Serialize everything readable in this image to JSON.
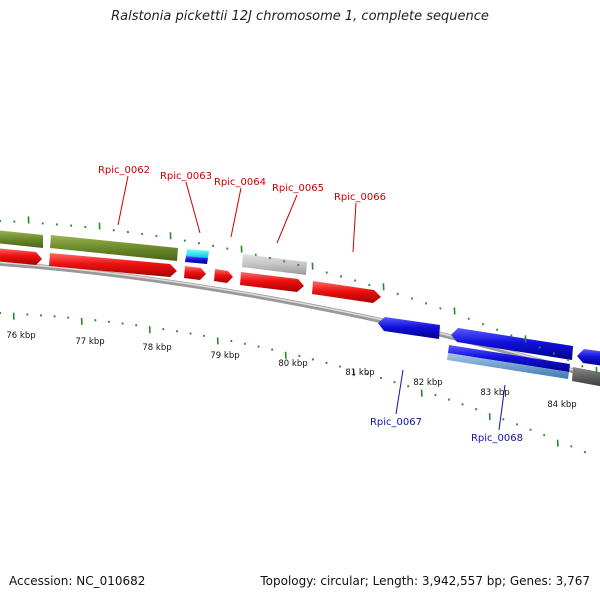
{
  "title": "Ralstonia pickettii 12J chromosome 1, complete sequence",
  "footer": {
    "accession": "Accession: NC_010682",
    "summary": "Topology: circular; Length: 3,942,557 bp; Genes: 3,767"
  },
  "scale_labels": [
    "76 kbp",
    "77 kbp",
    "78 kbp",
    "79 kbp",
    "80 kbp",
    "81 kbp",
    "82 kbp",
    "83 kbp",
    "84 kbp"
  ],
  "gene_labels_forward": [
    "Rpic_0062",
    "Rpic_0063",
    "Rpic_0064",
    "Rpic_0065",
    "Rpic_0066"
  ],
  "gene_labels_reverse": [
    "Rpic_0067",
    "Rpic_0068"
  ],
  "colors": {
    "forward_label": "#cc0000",
    "reverse_label": "#1111aa",
    "tick": "#2a8a2a",
    "cds_forward": "#ee1111",
    "cds_reverse": "#1111dd",
    "gene_olive": "#6b8a2a",
    "backbone": "#888888"
  }
}
